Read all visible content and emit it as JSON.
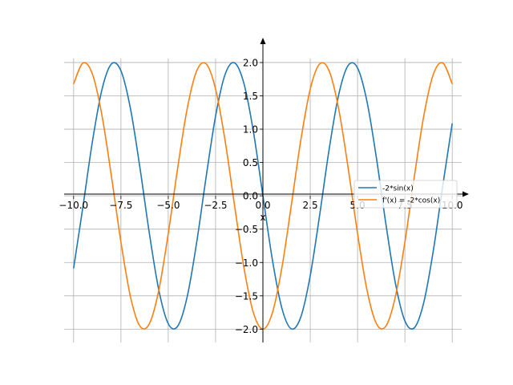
{
  "chart_data": {
    "type": "line",
    "title": "",
    "xlabel": "x",
    "ylabel": "",
    "xlim": [
      -10.5,
      10.5
    ],
    "ylim": [
      -2.2,
      2.3
    ],
    "grid": true,
    "legend_position": "center-right",
    "x_ticks": [
      -10.0,
      -7.5,
      -5.0,
      -2.5,
      0.0,
      2.5,
      5.0,
      7.5,
      10.0
    ],
    "x_tick_labels": [
      "−10.0",
      "−7.5",
      "−5.0",
      "−2.5",
      "0.0",
      "2.5",
      "5.0",
      "7.5",
      "10.0"
    ],
    "y_ticks": [
      -2.0,
      -1.5,
      -1.0,
      -0.5,
      0.0,
      0.5,
      1.0,
      1.5,
      2.0
    ],
    "y_tick_labels": [
      "−2.0",
      "−1.5",
      "−1.0",
      "−0.5",
      "0.0",
      "0.5",
      "1.0",
      "1.5",
      "2.0"
    ],
    "x": [
      -10.0,
      -9.5,
      -9.0,
      -8.5,
      -8.0,
      -7.5,
      -7.0,
      -6.5,
      -6.0,
      -5.5,
      -5.0,
      -4.5,
      -4.0,
      -3.5,
      -3.0,
      -2.5,
      -2.0,
      -1.5,
      -1.0,
      -0.5,
      0.0,
      0.5,
      1.0,
      1.5,
      2.0,
      2.5,
      3.0,
      3.5,
      4.0,
      4.5,
      5.0,
      5.5,
      6.0,
      6.5,
      7.0,
      7.5,
      8.0,
      8.5,
      9.0,
      9.5,
      10.0
    ],
    "series": [
      {
        "name": "-2*sin(x)",
        "color": "#1f77b4",
        "values": [
          -1.088,
          -0.15,
          0.824,
          1.596,
          1.979,
          1.876,
          1.314,
          0.43,
          -0.559,
          -1.411,
          -1.918,
          -1.955,
          -1.514,
          -0.701,
          0.282,
          1.197,
          1.819,
          1.995,
          1.683,
          0.959,
          0.0,
          -0.959,
          -1.683,
          -1.995,
          -1.819,
          -1.197,
          -0.282,
          0.701,
          1.514,
          1.955,
          1.918,
          1.411,
          0.559,
          -0.43,
          -1.314,
          -1.876,
          -1.979,
          -1.596,
          -0.824,
          0.15,
          1.088
        ]
      },
      {
        "name": "f'(x) = -2*cos(x)",
        "color": "#ff7f0e",
        "values": [
          1.678,
          1.994,
          1.822,
          1.204,
          0.291,
          -0.693,
          -1.508,
          -1.953,
          -1.92,
          -1.417,
          -0.567,
          0.421,
          1.307,
          1.873,
          1.98,
          1.602,
          0.832,
          -0.141,
          -1.081,
          -1.755,
          -2.0,
          -1.755,
          -1.081,
          -0.141,
          0.832,
          1.602,
          1.98,
          1.873,
          1.307,
          0.421,
          -0.567,
          -1.417,
          -1.92,
          -1.953,
          -1.508,
          -0.693,
          0.291,
          1.204,
          1.822,
          1.994,
          1.678
        ]
      }
    ]
  }
}
